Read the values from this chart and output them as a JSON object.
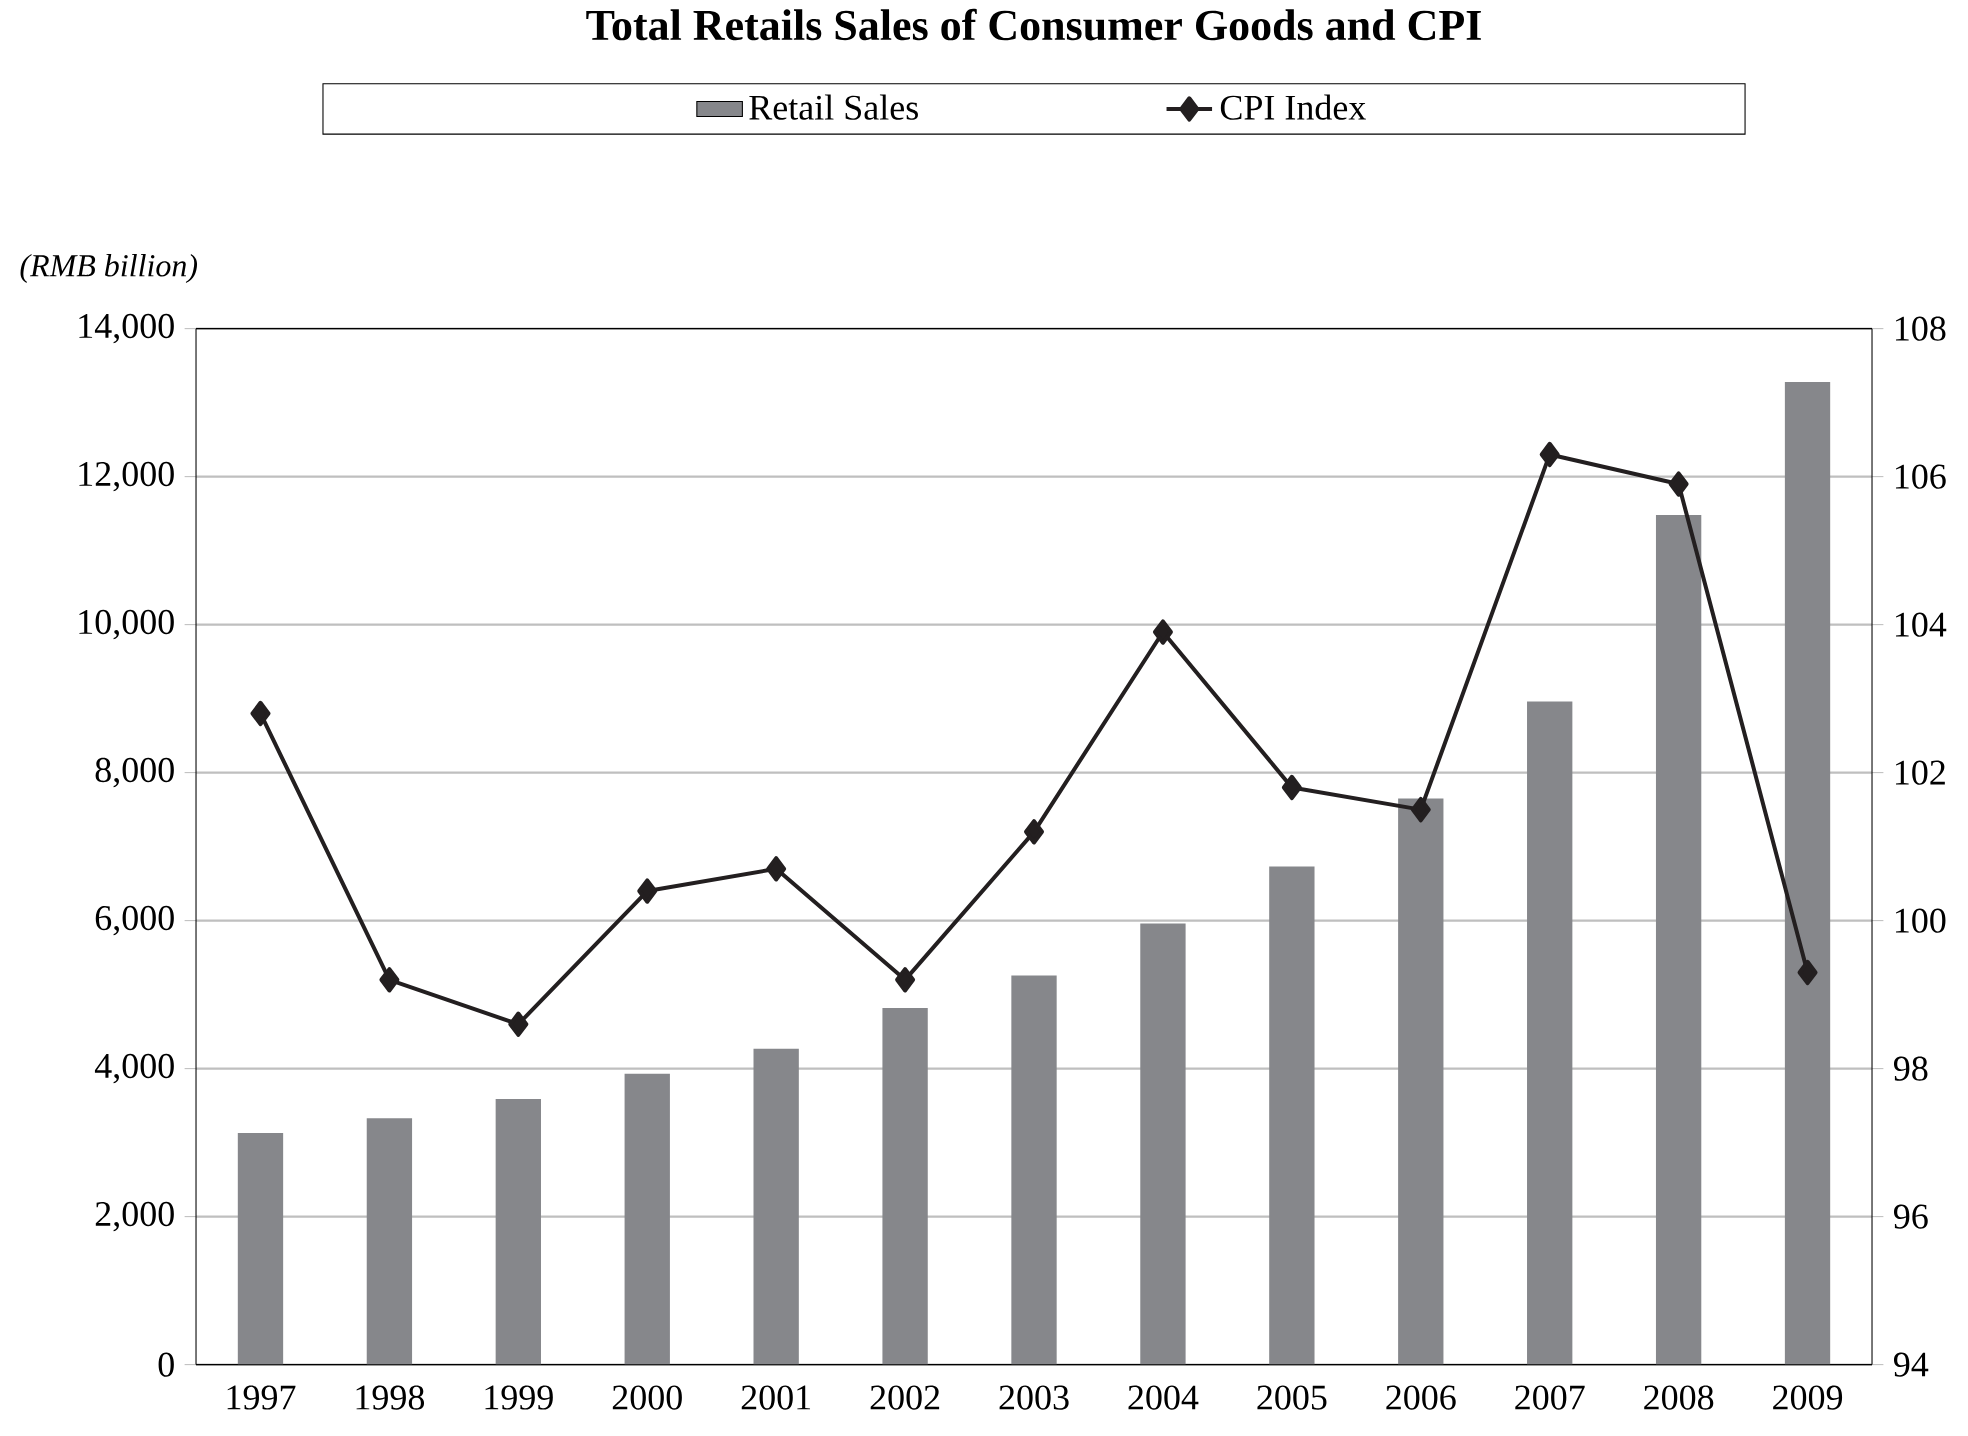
{
  "chart_data": {
    "type": "bar",
    "title": "Total Retails Sales of Consumer Goods and CPI",
    "ylabel": "(RMB billion)",
    "categories": [
      "1997",
      "1998",
      "1999",
      "2000",
      "2001",
      "2002",
      "2003",
      "2004",
      "2005",
      "2006",
      "2007",
      "2008",
      "2009"
    ],
    "series": [
      {
        "name": "Retail Sales",
        "color": "#86878b",
        "values": [
          3130,
          3330,
          3590,
          3930,
          4270,
          4820,
          5260,
          5960,
          6730,
          7650,
          8960,
          11480,
          13280
        ]
      },
      {
        "name": "CPI Index",
        "type": "line",
        "axis": "y2",
        "color": "#231f20",
        "marker": "diamond",
        "values": [
          102.8,
          99.2,
          98.6,
          100.4,
          100.7,
          99.2,
          101.2,
          103.9,
          101.8,
          101.5,
          106.3,
          105.9,
          99.3
        ]
      }
    ],
    "ylim": [
      0,
      14000
    ],
    "yticks": [
      0,
      {
        "value": 2000,
        "label": "2,000"
      },
      {
        "value": 4000,
        "label": "4,000"
      },
      {
        "value": 6000,
        "label": "6,000"
      },
      {
        "value": 8000,
        "label": "8,000"
      },
      {
        "value": 10000,
        "label": "10,000"
      },
      {
        "value": 12000,
        "label": "12,000"
      },
      {
        "value": 14000,
        "label": "14,000"
      }
    ],
    "y2lim": [
      94,
      108
    ],
    "y2ticks": [
      94,
      96,
      98,
      100,
      102,
      104,
      106,
      108
    ],
    "grid": "y",
    "legend": "top"
  }
}
